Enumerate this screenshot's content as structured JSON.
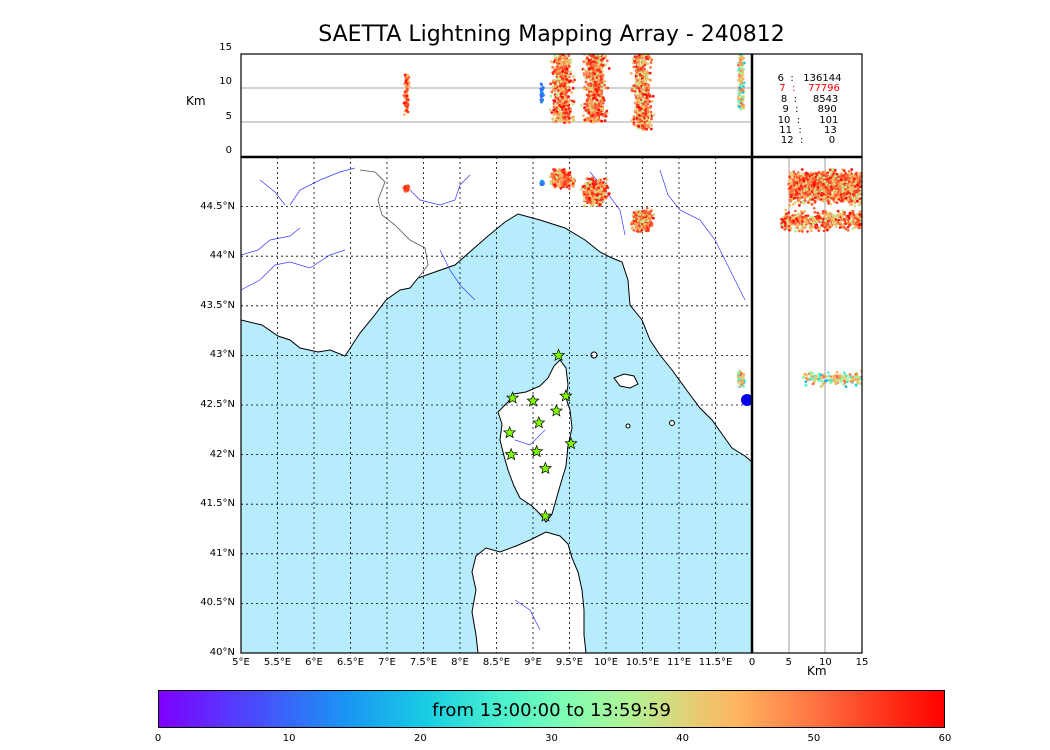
{
  "title": "SAETTA Lightning Mapping Array - 240812",
  "altitude_panel": {
    "ylabel": "Km",
    "y_ticks": [
      "15",
      "10",
      "5",
      "0"
    ]
  },
  "side_panel": {
    "xlabel": "Km",
    "x_ticks": [
      "0",
      "5",
      "10",
      "15"
    ]
  },
  "map": {
    "lon_ticks": [
      "5°E",
      "5.5°E",
      "6°E",
      "6.5°E",
      "7°E",
      "7.5°E",
      "8°E",
      "8.5°E",
      "9°E",
      "9.5°E",
      "10°E",
      "10.5°E",
      "11°E",
      "11.5°E"
    ],
    "lat_ticks": [
      "44.5°N",
      "44°N",
      "43.5°N",
      "43°N",
      "42.5°N",
      "42°N",
      "41.5°N",
      "41°N",
      "40.5°N",
      "40°N"
    ],
    "sea_color": "#b6ecfb",
    "station_marker": "star",
    "station_color": "#7fff00",
    "stations": [
      {
        "lon": 9.35,
        "lat": 43.0
      },
      {
        "lon": 8.72,
        "lat": 42.57
      },
      {
        "lon": 9.0,
        "lat": 42.54
      },
      {
        "lon": 9.45,
        "lat": 42.59
      },
      {
        "lon": 9.32,
        "lat": 42.44
      },
      {
        "lon": 9.08,
        "lat": 42.32
      },
      {
        "lon": 8.68,
        "lat": 42.22
      },
      {
        "lon": 9.52,
        "lat": 42.11
      },
      {
        "lon": 8.7,
        "lat": 42.0
      },
      {
        "lon": 9.05,
        "lat": 42.03
      },
      {
        "lon": 9.17,
        "lat": 41.86
      },
      {
        "lon": 9.17,
        "lat": 41.38
      }
    ]
  },
  "stats": [
    {
      "stations": "6",
      "count": "136144",
      "highlight": false
    },
    {
      "stations": "7",
      "count": "77796",
      "highlight": true
    },
    {
      "stations": "8",
      "count": "8543",
      "highlight": false
    },
    {
      "stations": "9",
      "count": "890",
      "highlight": false
    },
    {
      "stations": "10",
      "count": "101",
      "highlight": false
    },
    {
      "stations": "11",
      "count": "13",
      "highlight": false
    },
    {
      "stations": "12",
      "count": "0",
      "highlight": false
    }
  ],
  "colorbar": {
    "label": "from 13:00:00 to 13:59:59",
    "ticks": [
      "0",
      "10",
      "20",
      "30",
      "40",
      "50",
      "60"
    ]
  },
  "chart_data": {
    "type": "scatter",
    "title": "SAETTA Lightning Mapping Array - 240812",
    "lon_range": [
      5,
      12
    ],
    "lat_range": [
      40,
      45
    ],
    "alt_range_km": [
      0,
      15
    ],
    "color_scale_minutes": [
      0,
      60
    ],
    "clusters": [
      {
        "lon": 7.27,
        "lat": 44.68,
        "lon_spread": 0.06,
        "lat_spread": 0.04,
        "alt_min": 6,
        "alt_max": 12,
        "n": 80,
        "cmin": 45,
        "cmax": 60
      },
      {
        "lon": 9.12,
        "lat": 44.74,
        "lon_spread": 0.04,
        "lat_spread": 0.03,
        "alt_min": 8,
        "alt_max": 11,
        "n": 25,
        "cmin": 10,
        "cmax": 20
      },
      {
        "lon": 9.4,
        "lat": 44.78,
        "lon_spread": 0.2,
        "lat_spread": 0.12,
        "alt_min": 5,
        "alt_max": 15,
        "n": 500,
        "cmin": 40,
        "cmax": 60
      },
      {
        "lon": 9.85,
        "lat": 44.65,
        "lon_spread": 0.2,
        "lat_spread": 0.17,
        "alt_min": 5,
        "alt_max": 15,
        "n": 600,
        "cmin": 40,
        "cmax": 60
      },
      {
        "lon": 10.5,
        "lat": 44.36,
        "lon_spread": 0.18,
        "lat_spread": 0.14,
        "alt_min": 4,
        "alt_max": 15,
        "n": 450,
        "cmin": 40,
        "cmax": 60
      },
      {
        "lon": 11.85,
        "lat": 42.76,
        "lon_spread": 0.06,
        "lat_spread": 0.1,
        "alt_min": 7,
        "alt_max": 15,
        "n": 150,
        "cmin": 20,
        "cmax": 55
      }
    ]
  }
}
